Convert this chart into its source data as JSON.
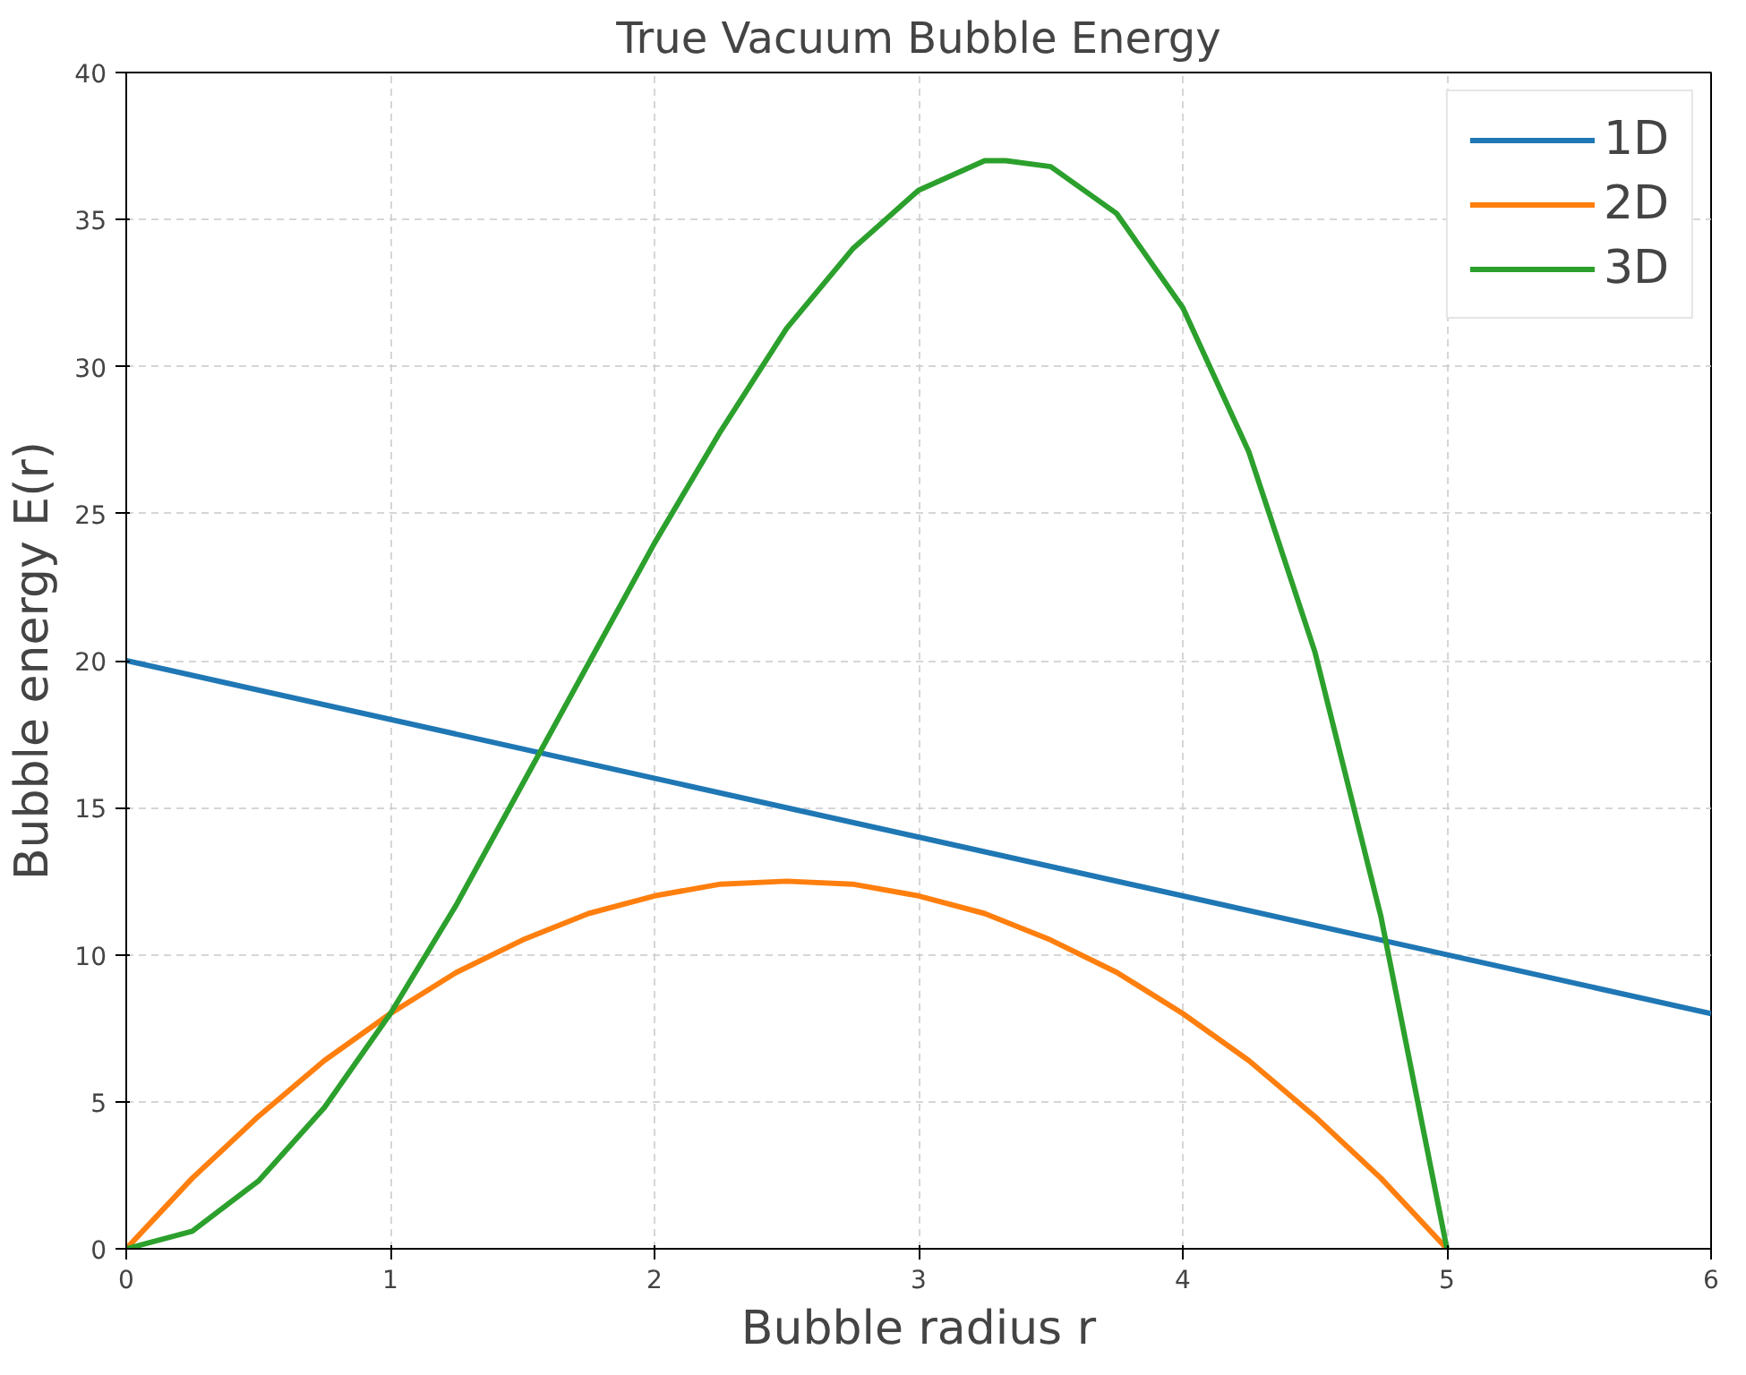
{
  "chart_data": {
    "type": "line",
    "title": "True Vacuum Bubble Energy",
    "xlabel": "Bubble radius r",
    "ylabel": "Bubble energy E(r)",
    "xlim": [
      0,
      6
    ],
    "ylim": [
      0,
      40
    ],
    "xticks": [
      0,
      1,
      2,
      3,
      4,
      5,
      6
    ],
    "yticks": [
      0,
      5,
      10,
      15,
      20,
      25,
      30,
      35,
      40
    ],
    "grid": true,
    "legend": "top right",
    "marker": "none",
    "line_style": "solid",
    "series": [
      {
        "name": "1D",
        "color": "#1f77b4",
        "x": [
          0,
          6
        ],
        "values": [
          20,
          8
        ]
      },
      {
        "name": "2D",
        "color": "#ff7f0e",
        "x": [
          0,
          0.25,
          0.5,
          0.75,
          1,
          1.25,
          1.5,
          1.75,
          2,
          2.25,
          2.5,
          2.75,
          3,
          3.25,
          3.5,
          3.75,
          4,
          4.25,
          4.5,
          4.75,
          5
        ],
        "values": [
          0,
          2.4,
          4.5,
          6.4,
          8,
          9.4,
          10.5,
          11.4,
          12,
          12.4,
          12.5,
          12.4,
          12,
          11.4,
          10.5,
          9.4,
          8,
          6.4,
          4.5,
          2.4,
          0
        ]
      },
      {
        "name": "3D",
        "color": "#2ca02c",
        "x": [
          0,
          0.25,
          0.5,
          0.75,
          1,
          1.25,
          1.5,
          1.75,
          2,
          2.25,
          2.5,
          2.75,
          3,
          3.25,
          3.33,
          3.5,
          3.75,
          4,
          4.25,
          4.5,
          4.75,
          5
        ],
        "values": [
          0,
          0.6,
          2.3,
          4.8,
          8,
          11.7,
          15.8,
          19.9,
          24,
          27.8,
          31.3,
          34,
          36,
          37,
          37,
          36.8,
          35.2,
          32,
          27.1,
          20.3,
          11.3,
          0
        ]
      }
    ]
  }
}
